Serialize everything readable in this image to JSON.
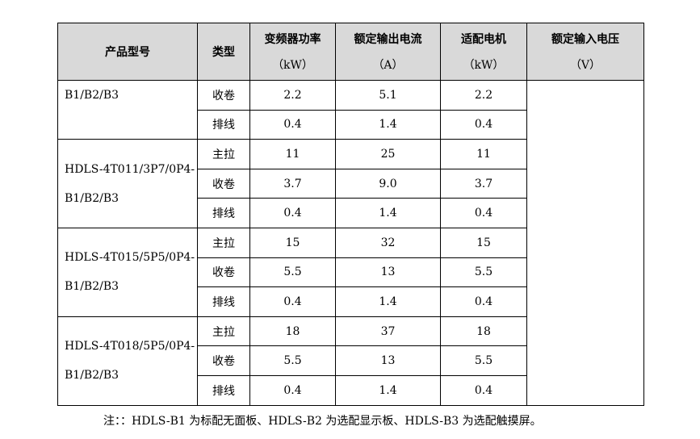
{
  "table": {
    "headers": {
      "model": "产品型号",
      "type": "类型",
      "power": {
        "label": "变频器功率",
        "unit": "（kW）"
      },
      "current": {
        "label": "额定输出电流",
        "unit": "（A）"
      },
      "motor": {
        "label": "适配电机",
        "unit": "（kW）"
      },
      "voltage": {
        "label": "额定输入电压",
        "unit": "（V）"
      }
    },
    "groups": [
      {
        "model": "B1/B2/B3",
        "rows": [
          {
            "type": "收卷",
            "power": "2.2",
            "current": "5.1",
            "motor": "2.2"
          },
          {
            "type": "排线",
            "power": "0.4",
            "current": "1.4",
            "motor": "0.4"
          }
        ]
      },
      {
        "model_line1": "HDLS-4T011/3P7/0P4-",
        "model_line2": "B1/B2/B3",
        "rows": [
          {
            "type": "主拉",
            "power": "11",
            "current": "25",
            "motor": "11"
          },
          {
            "type": "收卷",
            "power": "3.7",
            "current": "9.0",
            "motor": "3.7"
          },
          {
            "type": "排线",
            "power": "0.4",
            "current": "1.4",
            "motor": "0.4"
          }
        ]
      },
      {
        "model_line1": "HDLS-4T015/5P5/0P4-",
        "model_line2": "B1/B2/B3",
        "rows": [
          {
            "type": "主拉",
            "power": "15",
            "current": "32",
            "motor": "15"
          },
          {
            "type": "收卷",
            "power": "5.5",
            "current": "13",
            "motor": "5.5"
          },
          {
            "type": "排线",
            "power": "0.4",
            "current": "1.4",
            "motor": "0.4"
          }
        ]
      },
      {
        "model_line1": "HDLS-4T018/5P5/0P4-",
        "model_line2": "B1/B2/B3",
        "rows": [
          {
            "type": "主拉",
            "power": "18",
            "current": "37",
            "motor": "18"
          },
          {
            "type": "收卷",
            "power": "5.5",
            "current": "13",
            "motor": "5.5"
          },
          {
            "type": "排线",
            "power": "0.4",
            "current": "1.4",
            "motor": "0.4"
          }
        ]
      }
    ],
    "voltage_value": ""
  },
  "note": "注：：HDLS-B1 为标配无面板、HDLS-B2 为选配显示板、HDLS-B3 为选配触摸屏。"
}
